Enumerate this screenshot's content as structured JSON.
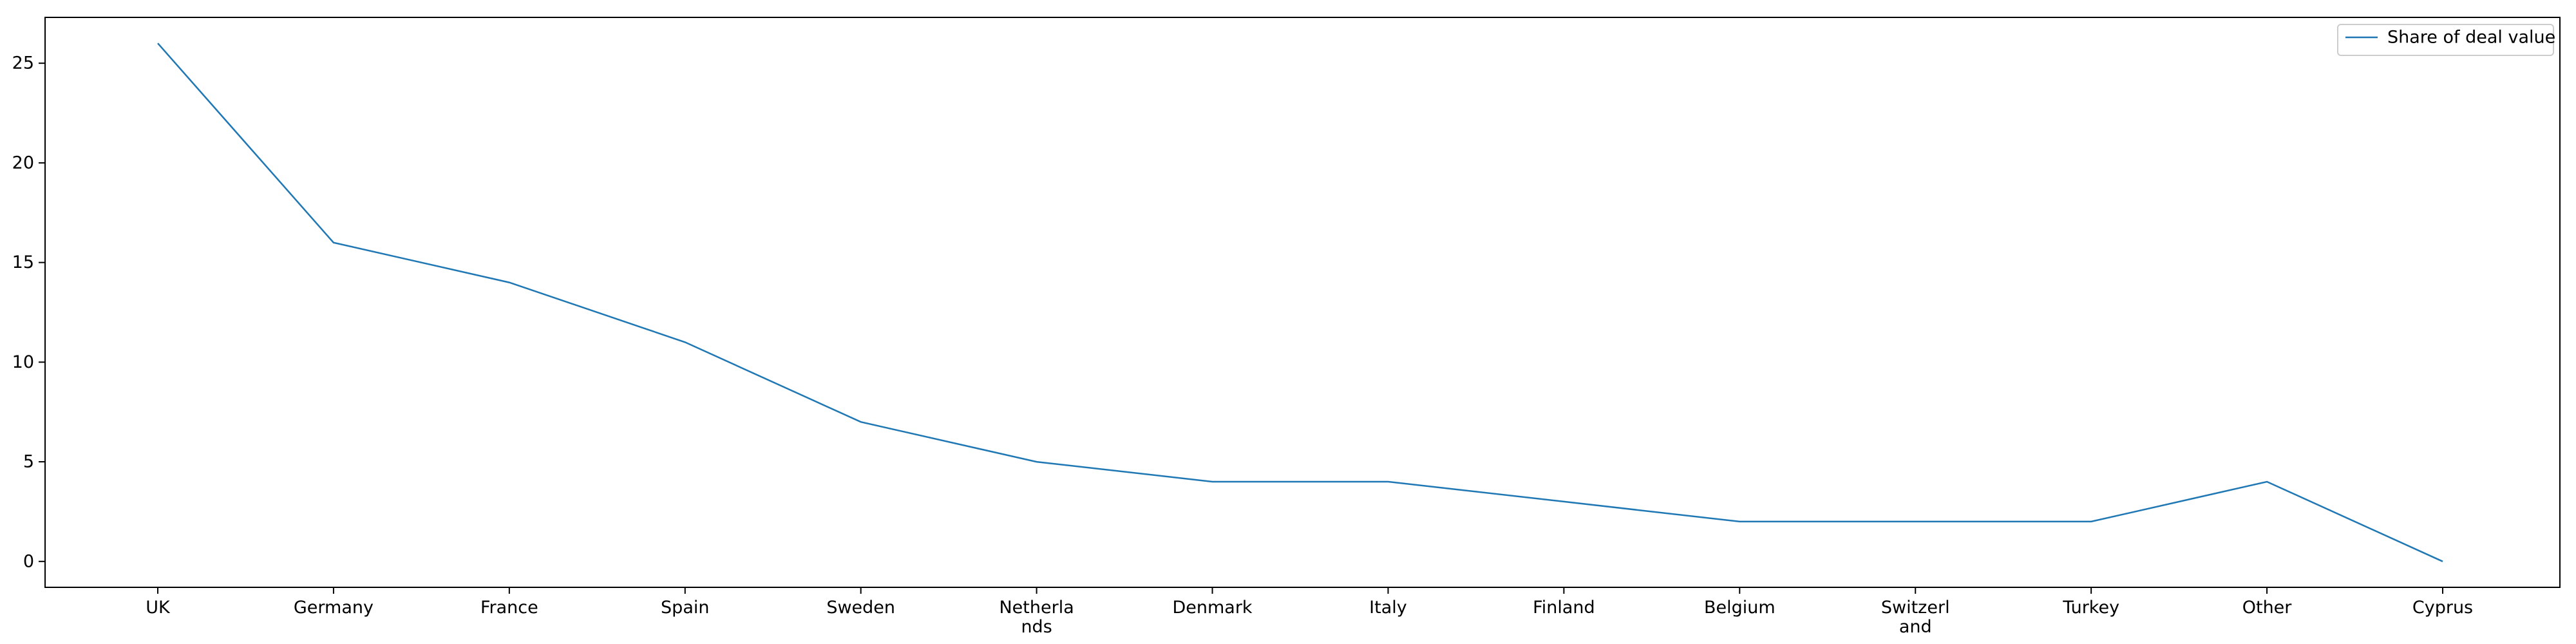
{
  "chart_data": {
    "type": "line",
    "categories": [
      "UK",
      "Germany",
      "France",
      "Spain",
      "Sweden",
      "Netherlands",
      "Denmark",
      "Italy",
      "Finland",
      "Belgium",
      "Switzerland",
      "Turkey",
      "Other",
      "Cyprus"
    ],
    "category_labels": [
      [
        "UK"
      ],
      [
        "Germany"
      ],
      [
        "France"
      ],
      [
        "Spain"
      ],
      [
        "Sweden"
      ],
      [
        "Netherla",
        "nds"
      ],
      [
        "Denmark"
      ],
      [
        "Italy"
      ],
      [
        "Finland"
      ],
      [
        "Belgium"
      ],
      [
        "Switzerl",
        "and"
      ],
      [
        "Turkey"
      ],
      [
        "Other"
      ],
      [
        "Cyprus"
      ]
    ],
    "series": [
      {
        "name": "Share of deal value",
        "values": [
          26,
          16,
          14,
          11,
          7,
          5,
          4,
          4,
          3,
          2,
          2,
          2,
          4,
          0
        ]
      }
    ],
    "yticks": [
      0,
      5,
      10,
      15,
      20,
      25
    ],
    "ylim": [
      -1.3,
      27.3
    ],
    "xlabel": "",
    "ylabel": "",
    "title": "",
    "grid": false,
    "legend": "top-right",
    "colors": {
      "series": "#1f77b4",
      "axis": "#000000",
      "legend_border": "#cccccc"
    }
  }
}
